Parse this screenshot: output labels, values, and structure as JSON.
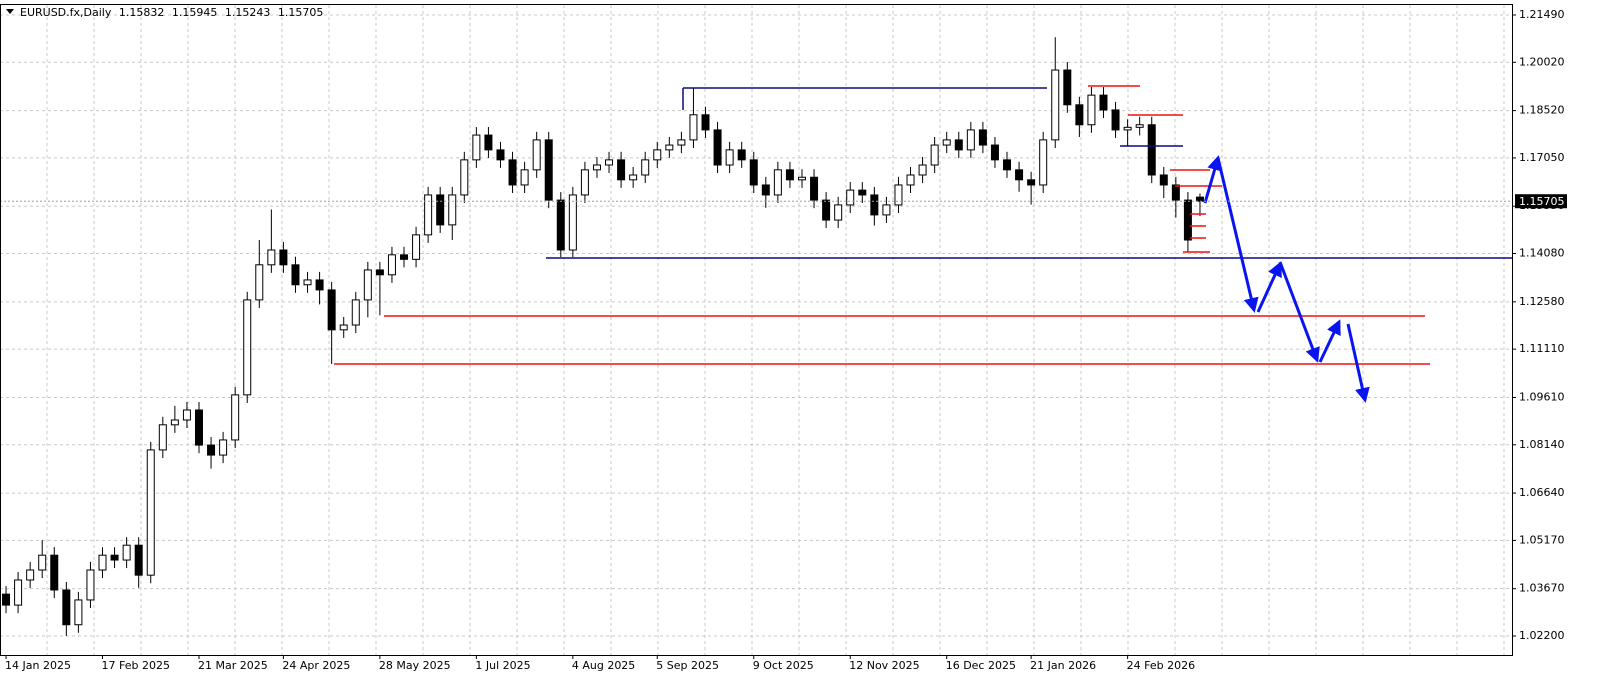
{
  "chart_data": {
    "type": "candlestick",
    "symbol": "EURUSD.fx,Daily",
    "categories": [
      "14 Jan 2025",
      null,
      null,
      null,
      null,
      null,
      null,
      null,
      "17 Feb 2025",
      null,
      null,
      null,
      null,
      null,
      null,
      null,
      "21 Mar 2025",
      null,
      null,
      null,
      null,
      null,
      null,
      "24 Apr 2025",
      null,
      null,
      null,
      null,
      null,
      null,
      null,
      "28 May 2025",
      null,
      null,
      null,
      null,
      null,
      null,
      null,
      "1 Jul 2025",
      null,
      null,
      null,
      null,
      null,
      null,
      null,
      "4 Aug 2025",
      null,
      null,
      null,
      null,
      null,
      null,
      "5 Sep 2025",
      null,
      null,
      null,
      null,
      null,
      null,
      null,
      "9 Oct 2025",
      null,
      null,
      null,
      null,
      null,
      null,
      null,
      "12 Nov 2025",
      null,
      null,
      null,
      null,
      null,
      null,
      null,
      "16 Dec 2025",
      null,
      null,
      null,
      null,
      null,
      null,
      "21 Jan 2026",
      null,
      null,
      null,
      null,
      null,
      null,
      null,
      "24 Feb 2026",
      null,
      null,
      null,
      null,
      null,
      null
    ],
    "open": [
      1.035,
      1.0316,
      1.0394,
      1.0425,
      1.0471,
      1.0363,
      1.0255,
      1.0332,
      1.0425,
      1.0471,
      1.0456,
      1.0502,
      1.0409,
      1.0798,
      1.0876,
      1.0891,
      1.0922,
      1.0813,
      1.0782,
      1.0829,
      1.0969,
      1.1264,
      1.1373,
      1.1419,
      1.1373,
      1.1311,
      1.1326,
      1.1295,
      1.1171,
      1.1186,
      1.1264,
      1.1357,
      1.1342,
      1.1404,
      1.139,
      1.1466,
      1.159,
      1.1497,
      1.159,
      1.1699,
      1.1776,
      1.173,
      1.1699,
      1.1621,
      1.1668,
      1.1761,
      1.1574,
      1.1419,
      1.159,
      1.1668,
      1.1683,
      1.1699,
      1.1637,
      1.1652,
      1.1699,
      1.173,
      1.1745,
      1.1761,
      1.1839,
      1.1792,
      1.1683,
      1.173,
      1.1699,
      1.1621,
      1.159,
      1.1668,
      1.1637,
      1.1645,
      1.1574,
      1.1512,
      1.1559,
      1.1605,
      1.159,
      1.1528,
      1.1559,
      1.1621,
      1.1652,
      1.1683,
      1.1745,
      1.1761,
      1.173,
      1.1792,
      1.1745,
      1.1699,
      1.1668,
      1.1637,
      1.1621,
      1.1761,
      1.1978,
      1.187,
      1.1808,
      1.19,
      1.1854,
      1.1792,
      1.18,
      1.1808,
      1.1652,
      1.1621,
      1.1574,
      1.15832
    ],
    "high": [
      1.0375,
      1.0419,
      1.045,
      1.0518,
      1.0496,
      1.0388,
      1.0357,
      1.045,
      1.0496,
      1.0496,
      1.0527,
      1.0527,
      1.0823,
      1.0901,
      1.0935,
      1.0947,
      1.0947,
      1.0838,
      1.0854,
      1.0994,
      1.1289,
      1.145,
      1.1545,
      1.1444,
      1.1398,
      1.1351,
      1.1351,
      1.132,
      1.1211,
      1.1289,
      1.1382,
      1.1382,
      1.1429,
      1.1429,
      1.1491,
      1.1615,
      1.1615,
      1.1615,
      1.1724,
      1.1801,
      1.1801,
      1.1755,
      1.1724,
      1.1693,
      1.1786,
      1.1786,
      1.1599,
      1.1615,
      1.1693,
      1.1708,
      1.1724,
      1.1724,
      1.1677,
      1.1724,
      1.1755,
      1.177,
      1.1786,
      1.1922,
      1.1864,
      1.1817,
      1.1755,
      1.1755,
      1.1724,
      1.1646,
      1.1693,
      1.1693,
      1.167,
      1.167,
      1.1599,
      1.1584,
      1.163,
      1.163,
      1.1615,
      1.1584,
      1.1646,
      1.1677,
      1.1708,
      1.177,
      1.1786,
      1.1786,
      1.1817,
      1.1817,
      1.177,
      1.1724,
      1.1693,
      1.1662,
      1.1786,
      1.208,
      1.2003,
      1.1895,
      1.1925,
      1.1925,
      1.1879,
      1.1825,
      1.1833,
      1.1833,
      1.1677,
      1.1646,
      1.1599,
      1.15945
    ],
    "low": [
      1.0291,
      1.0291,
      1.0369,
      1.04,
      1.0338,
      1.022,
      1.023,
      1.0307,
      1.04,
      1.0431,
      1.0431,
      1.037,
      1.0384,
      1.0773,
      1.0851,
      1.0866,
      1.0788,
      1.074,
      1.0757,
      1.0804,
      1.0944,
      1.1239,
      1.1348,
      1.1348,
      1.1286,
      1.1286,
      1.125,
      1.1065,
      1.1146,
      1.1161,
      1.121,
      1.1216,
      1.1317,
      1.1365,
      1.1365,
      1.1441,
      1.1472,
      1.145,
      1.1565,
      1.1674,
      1.1705,
      1.1674,
      1.1596,
      1.1596,
      1.1643,
      1.1549,
      1.1397,
      1.1397,
      1.1565,
      1.1643,
      1.1658,
      1.1612,
      1.1612,
      1.1627,
      1.1674,
      1.1705,
      1.172,
      1.1736,
      1.1767,
      1.1658,
      1.1658,
      1.1674,
      1.1596,
      1.155,
      1.1565,
      1.1612,
      1.1612,
      1.1549,
      1.1487,
      1.1487,
      1.1534,
      1.1565,
      1.1495,
      1.1503,
      1.1534,
      1.1596,
      1.1627,
      1.1658,
      1.172,
      1.1705,
      1.1705,
      1.172,
      1.1674,
      1.1643,
      1.16,
      1.156,
      1.1596,
      1.1736,
      1.1845,
      1.177,
      1.1783,
      1.1829,
      1.1767,
      1.174,
      1.1775,
      1.1627,
      1.158,
      1.152,
      1.1413,
      1.15243
    ],
    "close": [
      1.0316,
      1.0394,
      1.0425,
      1.0471,
      1.0363,
      1.0255,
      1.0332,
      1.0425,
      1.0471,
      1.0456,
      1.0502,
      1.0409,
      1.0798,
      1.0876,
      1.0891,
      1.0922,
      1.0813,
      1.0782,
      1.0829,
      1.0969,
      1.1264,
      1.1373,
      1.1419,
      1.1373,
      1.1311,
      1.1326,
      1.1295,
      1.1171,
      1.1186,
      1.1264,
      1.1357,
      1.1342,
      1.1404,
      1.139,
      1.1466,
      1.159,
      1.1497,
      1.159,
      1.1699,
      1.1776,
      1.173,
      1.1699,
      1.1621,
      1.1668,
      1.1761,
      1.1574,
      1.1419,
      1.159,
      1.1668,
      1.1683,
      1.1699,
      1.1637,
      1.1652,
      1.1699,
      1.173,
      1.1745,
      1.1761,
      1.1839,
      1.1792,
      1.1683,
      1.173,
      1.1699,
      1.1621,
      1.159,
      1.1668,
      1.1637,
      1.1645,
      1.1574,
      1.1512,
      1.1559,
      1.1605,
      1.159,
      1.1528,
      1.1559,
      1.1621,
      1.1652,
      1.1683,
      1.1745,
      1.1761,
      1.173,
      1.1792,
      1.1745,
      1.1699,
      1.1668,
      1.1637,
      1.1621,
      1.1761,
      1.1978,
      1.187,
      1.1808,
      1.19,
      1.1854,
      1.1792,
      1.18,
      1.1808,
      1.1652,
      1.1621,
      1.1574,
      1.145,
      1.15705
    ],
    "ylim": [
      1.0161,
      1.218
    ],
    "yticks": [
      {
        "value": 1.2149,
        "label": "1.21490"
      },
      {
        "value": 1.2002,
        "label": "1.20020"
      },
      {
        "value": 1.1852,
        "label": "1.18520"
      },
      {
        "value": 1.1705,
        "label": "1.17050"
      },
      {
        "value": 1.1555,
        "label": "1.15550"
      },
      {
        "value": 1.1408,
        "label": "1.14080"
      },
      {
        "value": 1.1258,
        "label": "1.12580"
      },
      {
        "value": 1.1111,
        "label": "1.11110"
      },
      {
        "value": 1.0961,
        "label": "1.09610"
      },
      {
        "value": 1.0814,
        "label": "1.08140"
      },
      {
        "value": 1.0664,
        "label": "1.06640"
      },
      {
        "value": 1.0517,
        "label": "1.05170"
      },
      {
        "value": 1.0367,
        "label": "1.03670"
      },
      {
        "value": 1.022,
        "label": "1.02200"
      }
    ],
    "grid": true
  }
}
